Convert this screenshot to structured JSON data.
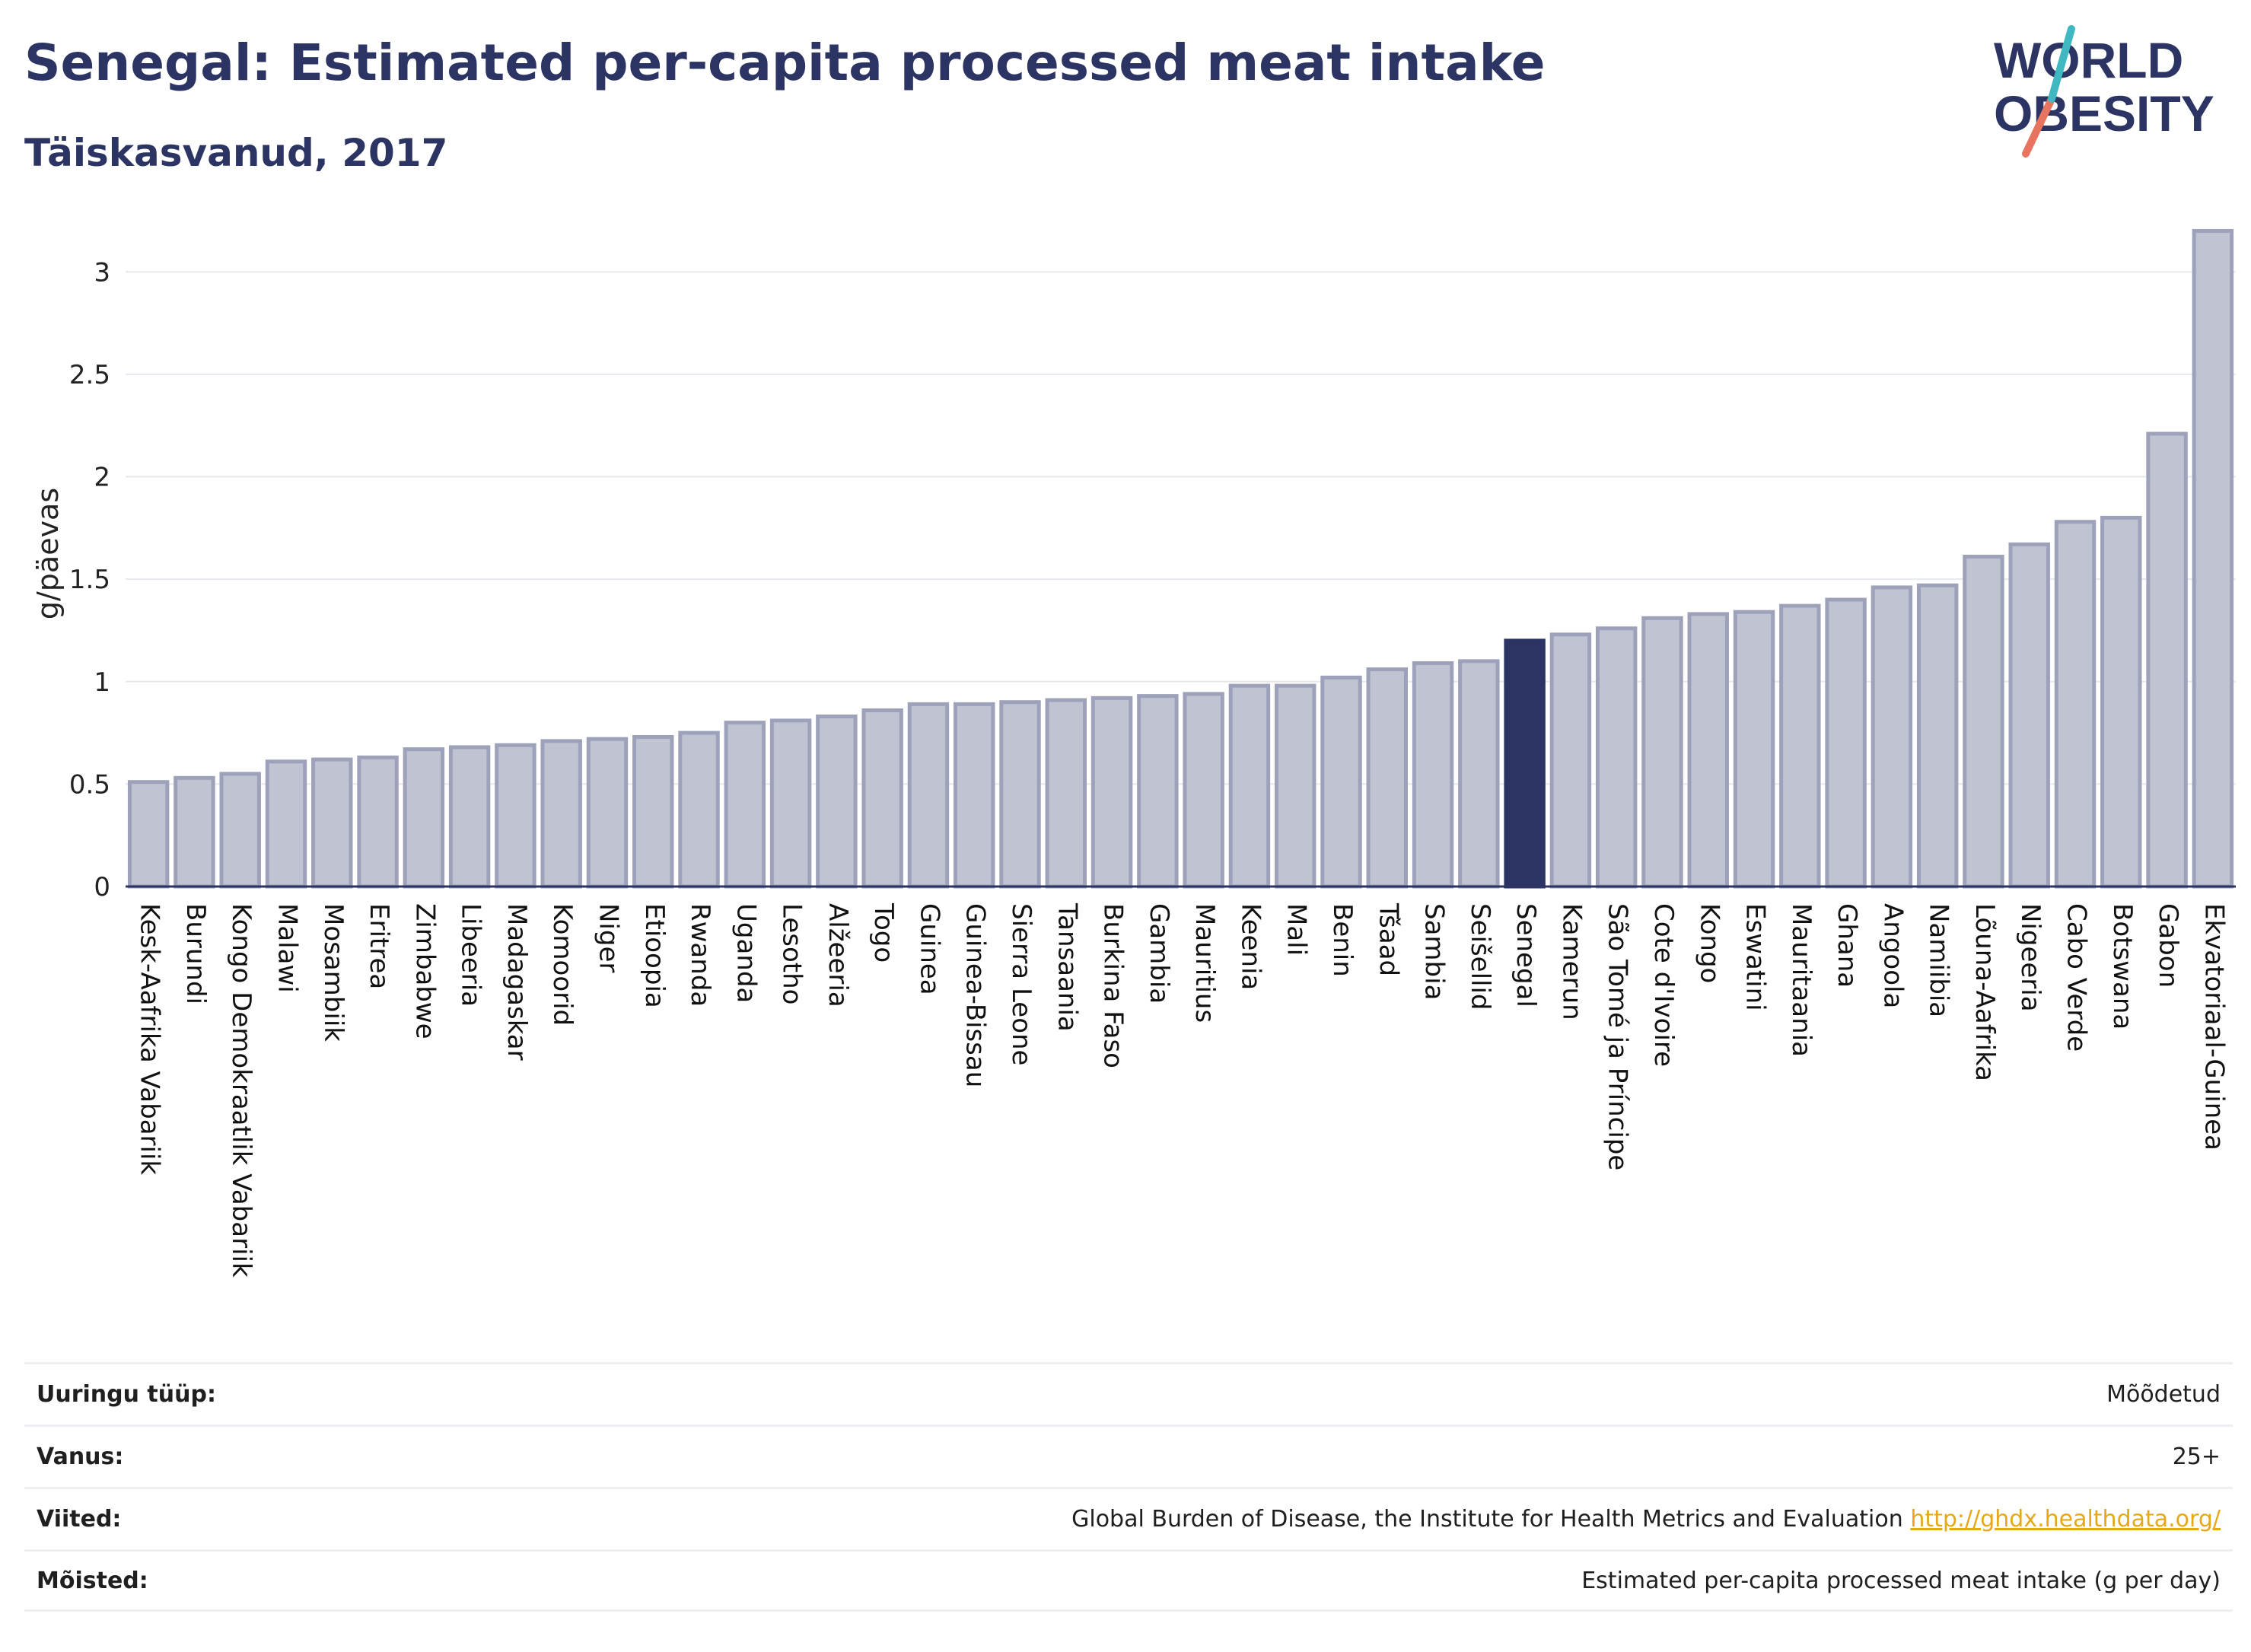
{
  "header": {
    "title": "Senegal: Estimated per-capita processed meat intake",
    "subtitle": "Täiskasvanud, 2017"
  },
  "logo": {
    "line1": "WORLD",
    "line2": "OBESITY"
  },
  "colors": {
    "bar": "#bfc3d2",
    "bar_border": "#9da2ba",
    "highlight": "#2b3462",
    "grid": "#e6e8ee",
    "axis": "#2b3462",
    "link": "#e6a817"
  },
  "chart_data": {
    "type": "bar",
    "title": "Senegal: Estimated per-capita processed meat intake",
    "subtitle": "Täiskasvanud, 2017",
    "ylabel": "g/päevas",
    "ylim": [
      0,
      3.25
    ],
    "yticks": [
      0,
      0.5,
      1,
      1.5,
      2,
      2.5,
      3
    ],
    "ytick_labels": [
      "0",
      "0.5",
      "1",
      "1.5",
      "2",
      "2.5",
      "3"
    ],
    "grid": true,
    "highlight": "Senegal",
    "categories": [
      "Kesk-Aafrika Vabariik",
      "Burundi",
      "Kongo Demokraatlik Vabariik",
      "Malawi",
      "Mosambiik",
      "Eritrea",
      "Zimbabwe",
      "Libeeria",
      "Madagaskar",
      "Komoorid",
      "Niger",
      "Etioopia",
      "Rwanda",
      "Uganda",
      "Lesotho",
      "Alžeeria",
      "Togo",
      "Guinea",
      "Guinea-Bissau",
      "Sierra Leone",
      "Tansaania",
      "Burkina Faso",
      "Gambia",
      "Mauritius",
      "Keenia",
      "Mali",
      "Benin",
      "Tšaad",
      "Sambia",
      "Seišellid",
      "Senegal",
      "Kamerun",
      "São Tomé ja Príncipe",
      "Cote d'Ivoire",
      "Kongo",
      "Eswatini",
      "Mauritaania",
      "Ghana",
      "Angoola",
      "Namiibia",
      "Lõuna-Aafrika",
      "Nigeeria",
      "Cabo Verde",
      "Botswana",
      "Gabon",
      "Ekvatoriaal-Guinea"
    ],
    "values": [
      0.51,
      0.53,
      0.55,
      0.61,
      0.62,
      0.63,
      0.67,
      0.68,
      0.69,
      0.71,
      0.72,
      0.73,
      0.75,
      0.8,
      0.81,
      0.83,
      0.86,
      0.89,
      0.89,
      0.9,
      0.91,
      0.92,
      0.93,
      0.94,
      0.98,
      0.98,
      1.02,
      1.06,
      1.09,
      1.1,
      1.2,
      1.23,
      1.26,
      1.31,
      1.33,
      1.34,
      1.37,
      1.4,
      1.46,
      1.47,
      1.61,
      1.67,
      1.78,
      1.8,
      2.21,
      3.2
    ]
  },
  "info": {
    "rows": [
      {
        "label": "Uuringu tüüp:",
        "value": "Mõõdetud"
      },
      {
        "label": "Vanus:",
        "value": "25+"
      },
      {
        "label": "Viited:",
        "value": "Global Burden of Disease, the Institute for Health Metrics and Evaluation",
        "link": "http://ghdx.healthdata.org/"
      },
      {
        "label": "Mõisted:",
        "value": "Estimated per-capita processed meat intake (g per day)"
      }
    ]
  }
}
